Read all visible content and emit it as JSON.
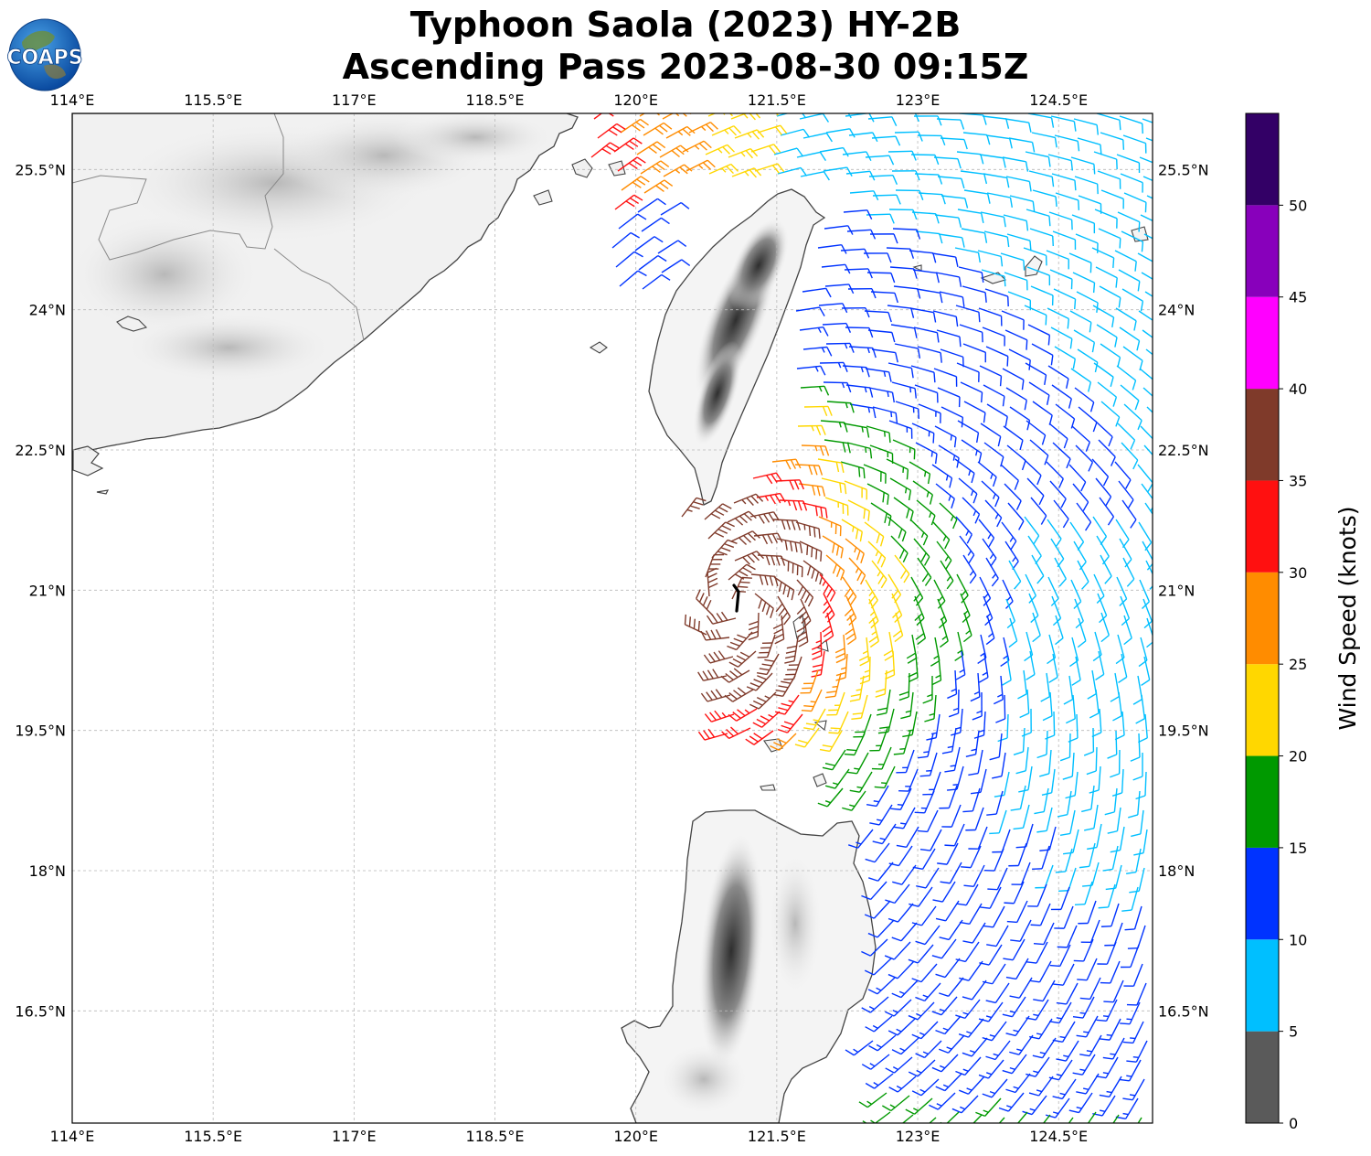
{
  "header": {
    "title_line1": "Typhoon Saola (2023) HY-2B",
    "title_line2": "Ascending Pass 2023-08-30 09:15Z",
    "logo_text": "COAPS"
  },
  "map": {
    "lon_range": [
      114.0,
      125.5
    ],
    "lat_range": [
      15.3,
      26.1
    ],
    "lon_ticks": [
      "114°E",
      "115.5°E",
      "117°E",
      "118.5°E",
      "120°E",
      "121.5°E",
      "123°E",
      "124.5°E"
    ],
    "lat_ticks": [
      "25.5°N",
      "24°N",
      "22.5°N",
      "21°N",
      "19.5°N",
      "18°N",
      "16.5°N"
    ],
    "storm_center": {
      "lon": 121.08,
      "lat": 20.85
    }
  },
  "colorbar": {
    "label": "Wind Speed (knots)",
    "tick_labels": [
      "0",
      "5",
      "10",
      "15",
      "20",
      "25",
      "30",
      "35",
      "40",
      "45",
      "50"
    ],
    "bins": [
      {
        "min": 0,
        "max": 5,
        "color": "#5a5a5a"
      },
      {
        "min": 5,
        "max": 10,
        "color": "#00bfff"
      },
      {
        "min": 10,
        "max": 15,
        "color": "#0033ff"
      },
      {
        "min": 15,
        "max": 20,
        "color": "#009900"
      },
      {
        "min": 20,
        "max": 25,
        "color": "#ffd700"
      },
      {
        "min": 25,
        "max": 30,
        "color": "#ff8c00"
      },
      {
        "min": 30,
        "max": 35,
        "color": "#ff1010"
      },
      {
        "min": 35,
        "max": 40,
        "color": "#7f3a2a"
      },
      {
        "min": 40,
        "max": 45,
        "color": "#ff00ff"
      },
      {
        "min": 45,
        "max": 50,
        "color": "#8800bb"
      },
      {
        "min": 50,
        "max": 55,
        "color": "#330066"
      }
    ]
  },
  "colors": {
    "coastline": "#444444",
    "border": "#888888",
    "gridline": "#b8b8b8",
    "storm_track": "#000000"
  }
}
